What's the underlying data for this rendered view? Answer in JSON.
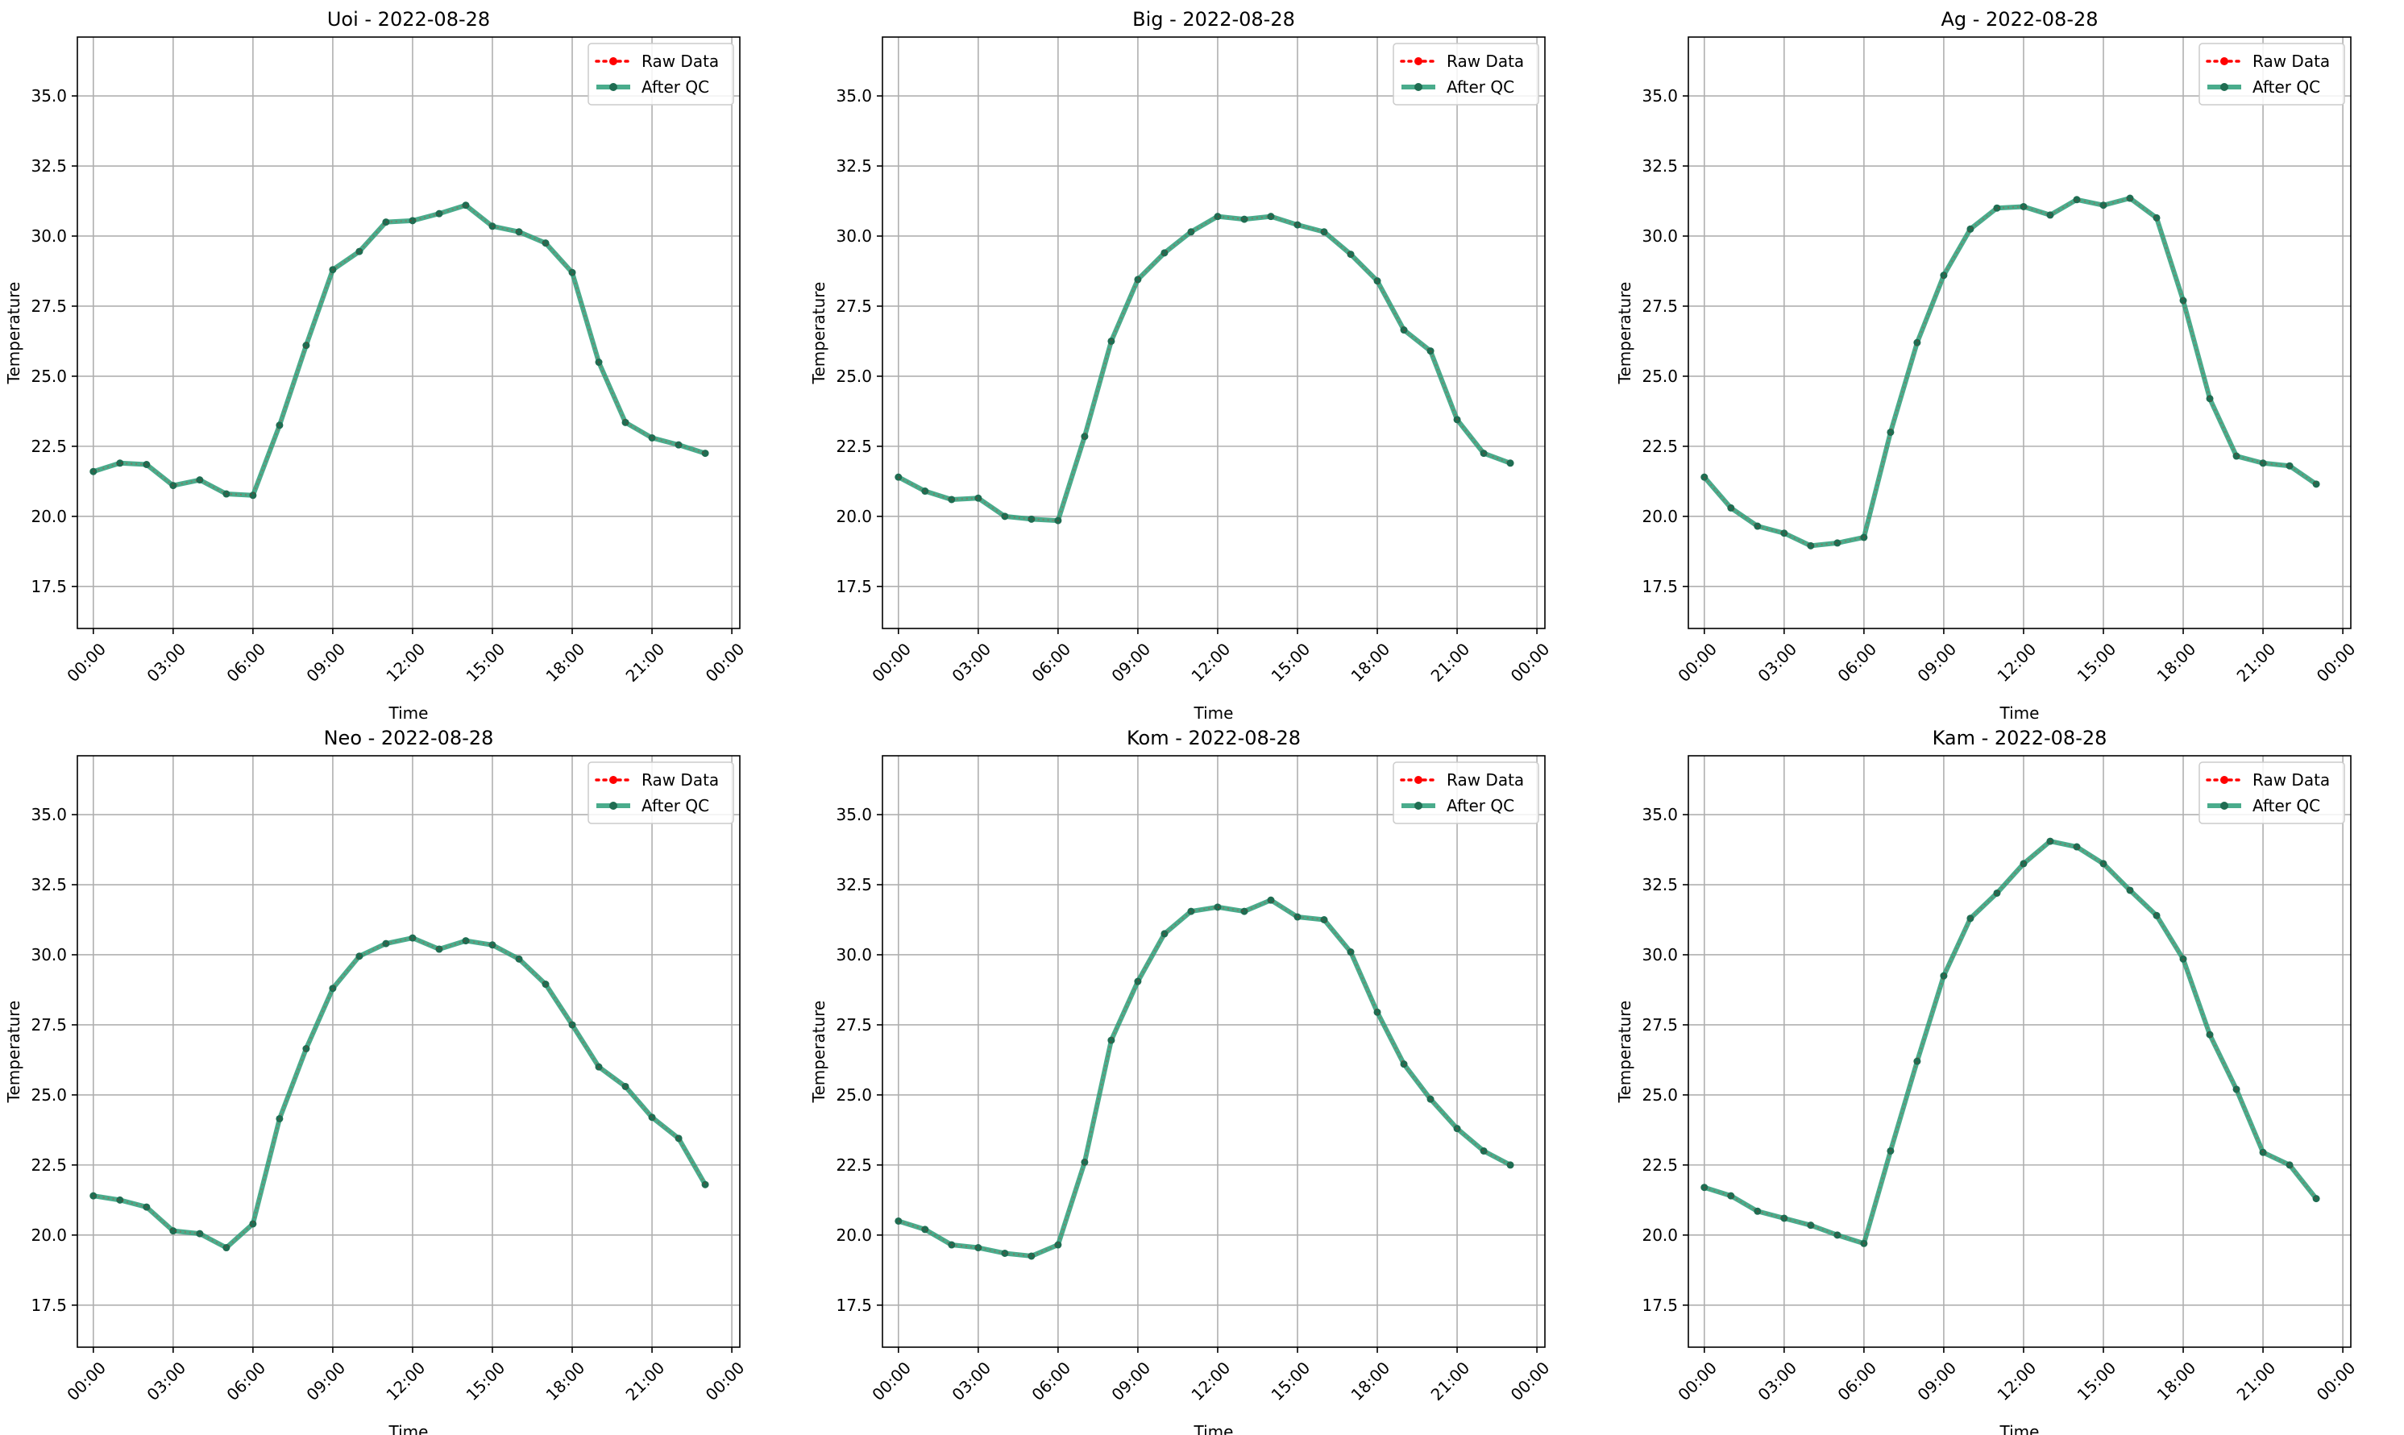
{
  "chart_data": [
    {
      "type": "line",
      "title": "Uoi - 2022-08-28",
      "xlabel": "Time",
      "ylabel": "Temperature",
      "x": [
        0,
        1,
        2,
        3,
        4,
        5,
        6,
        7,
        8,
        9,
        10,
        11,
        12,
        13,
        14,
        15,
        16,
        17,
        18,
        19,
        20,
        21,
        22,
        23
      ],
      "xticks": [
        "00:00",
        "03:00",
        "06:00",
        "09:00",
        "12:00",
        "15:00",
        "18:00",
        "21:00",
        "00:00"
      ],
      "yticks": [
        "17.5",
        "20.0",
        "22.5",
        "25.0",
        "27.5",
        "30.0",
        "32.5",
        "35.0"
      ],
      "ylim": [
        16.0,
        37.1
      ],
      "grid": true,
      "legend_position": "upper right",
      "series": [
        {
          "name": "Raw Data",
          "values": [
            21.6,
            21.9,
            21.85,
            21.1,
            21.3,
            20.8,
            20.75,
            23.25,
            26.1,
            28.8,
            29.45,
            30.5,
            30.55,
            30.8,
            31.1,
            30.35,
            30.15,
            29.75,
            28.7,
            25.5,
            23.35,
            22.8,
            22.55,
            22.25
          ]
        },
        {
          "name": "After QC",
          "values": [
            21.6,
            21.9,
            21.85,
            21.1,
            21.3,
            20.8,
            20.75,
            23.25,
            26.1,
            28.8,
            29.45,
            30.5,
            30.55,
            30.8,
            31.1,
            30.35,
            30.15,
            29.75,
            28.7,
            25.5,
            23.35,
            22.8,
            22.55,
            22.25
          ]
        }
      ]
    },
    {
      "type": "line",
      "title": "Big - 2022-08-28",
      "xlabel": "Time",
      "ylabel": "Temperature",
      "x": [
        0,
        1,
        2,
        3,
        4,
        5,
        6,
        7,
        8,
        9,
        10,
        11,
        12,
        13,
        14,
        15,
        16,
        17,
        18,
        19,
        20,
        21,
        22,
        23
      ],
      "xticks": [
        "00:00",
        "03:00",
        "06:00",
        "09:00",
        "12:00",
        "15:00",
        "18:00",
        "21:00",
        "00:00"
      ],
      "yticks": [
        "17.5",
        "20.0",
        "22.5",
        "25.0",
        "27.5",
        "30.0",
        "32.5",
        "35.0"
      ],
      "ylim": [
        16.0,
        37.1
      ],
      "grid": true,
      "legend_position": "upper right",
      "series": [
        {
          "name": "Raw Data",
          "values": [
            21.4,
            20.9,
            20.6,
            20.65,
            20.0,
            19.9,
            19.85,
            22.85,
            26.25,
            28.45,
            29.4,
            30.15,
            30.7,
            30.6,
            30.7,
            30.4,
            30.15,
            29.35,
            28.4,
            26.65,
            25.9,
            23.45,
            22.25,
            21.9
          ]
        },
        {
          "name": "After QC",
          "values": [
            21.4,
            20.9,
            20.6,
            20.65,
            20.0,
            19.9,
            19.85,
            22.85,
            26.25,
            28.45,
            29.4,
            30.15,
            30.7,
            30.6,
            30.7,
            30.4,
            30.15,
            29.35,
            28.4,
            26.65,
            25.9,
            23.45,
            22.25,
            21.9
          ]
        }
      ]
    },
    {
      "type": "line",
      "title": "Ag - 2022-08-28",
      "xlabel": "Time",
      "ylabel": "Temperature",
      "x": [
        0,
        1,
        2,
        3,
        4,
        5,
        6,
        7,
        8,
        9,
        10,
        11,
        12,
        13,
        14,
        15,
        16,
        17,
        18,
        19,
        20,
        21,
        22,
        23
      ],
      "xticks": [
        "00:00",
        "03:00",
        "06:00",
        "09:00",
        "12:00",
        "15:00",
        "18:00",
        "21:00",
        "00:00"
      ],
      "yticks": [
        "17.5",
        "20.0",
        "22.5",
        "25.0",
        "27.5",
        "30.0",
        "32.5",
        "35.0"
      ],
      "ylim": [
        16.0,
        37.1
      ],
      "grid": true,
      "legend_position": "upper right",
      "series": [
        {
          "name": "Raw Data",
          "values": [
            21.4,
            20.3,
            19.65,
            19.4,
            18.95,
            19.05,
            19.25,
            23.0,
            26.2,
            28.6,
            30.25,
            31.0,
            31.05,
            30.75,
            31.3,
            31.1,
            31.35,
            30.65,
            27.7,
            24.2,
            22.15,
            21.9,
            21.8,
            21.15
          ]
        },
        {
          "name": "After QC",
          "values": [
            21.4,
            20.3,
            19.65,
            19.4,
            18.95,
            19.05,
            19.25,
            23.0,
            26.2,
            28.6,
            30.25,
            31.0,
            31.05,
            30.75,
            31.3,
            31.1,
            31.35,
            30.65,
            27.7,
            24.2,
            22.15,
            21.9,
            21.8,
            21.15
          ]
        }
      ]
    },
    {
      "type": "line",
      "title": "Neo - 2022-08-28",
      "xlabel": "Time",
      "ylabel": "Temperature",
      "x": [
        0,
        1,
        2,
        3,
        4,
        5,
        6,
        7,
        8,
        9,
        10,
        11,
        12,
        13,
        14,
        15,
        16,
        17,
        18,
        19,
        20,
        21,
        22,
        23
      ],
      "xticks": [
        "00:00",
        "03:00",
        "06:00",
        "09:00",
        "12:00",
        "15:00",
        "18:00",
        "21:00",
        "00:00"
      ],
      "yticks": [
        "17.5",
        "20.0",
        "22.5",
        "25.0",
        "27.5",
        "30.0",
        "32.5",
        "35.0"
      ],
      "ylim": [
        16.0,
        37.1
      ],
      "grid": true,
      "legend_position": "upper right",
      "series": [
        {
          "name": "Raw Data",
          "values": [
            21.4,
            21.25,
            21.0,
            20.15,
            20.05,
            19.55,
            20.4,
            24.15,
            26.65,
            28.8,
            29.95,
            30.4,
            30.6,
            30.2,
            30.5,
            30.35,
            29.85,
            28.95,
            27.5,
            26.0,
            25.3,
            24.2,
            23.45,
            21.8
          ]
        },
        {
          "name": "After QC",
          "values": [
            21.4,
            21.25,
            21.0,
            20.15,
            20.05,
            19.55,
            20.4,
            24.15,
            26.65,
            28.8,
            29.95,
            30.4,
            30.6,
            30.2,
            30.5,
            30.35,
            29.85,
            28.95,
            27.5,
            26.0,
            25.3,
            24.2,
            23.45,
            21.8
          ]
        }
      ]
    },
    {
      "type": "line",
      "title": "Kom - 2022-08-28",
      "xlabel": "Time",
      "ylabel": "Temperature",
      "x": [
        0,
        1,
        2,
        3,
        4,
        5,
        6,
        7,
        8,
        9,
        10,
        11,
        12,
        13,
        14,
        15,
        16,
        17,
        18,
        19,
        20,
        21,
        22,
        23
      ],
      "xticks": [
        "00:00",
        "03:00",
        "06:00",
        "09:00",
        "12:00",
        "15:00",
        "18:00",
        "21:00",
        "00:00"
      ],
      "yticks": [
        "17.5",
        "20.0",
        "22.5",
        "25.0",
        "27.5",
        "30.0",
        "32.5",
        "35.0"
      ],
      "ylim": [
        16.0,
        37.1
      ],
      "grid": true,
      "legend_position": "upper right",
      "series": [
        {
          "name": "Raw Data",
          "values": [
            20.5,
            20.2,
            19.65,
            19.55,
            19.35,
            19.25,
            19.65,
            22.6,
            26.95,
            29.05,
            30.75,
            31.55,
            31.7,
            31.55,
            31.95,
            31.35,
            31.25,
            30.1,
            27.95,
            26.1,
            24.85,
            23.8,
            23.0,
            22.5
          ]
        },
        {
          "name": "After QC",
          "values": [
            20.5,
            20.2,
            19.65,
            19.55,
            19.35,
            19.25,
            19.65,
            22.6,
            26.95,
            29.05,
            30.75,
            31.55,
            31.7,
            31.55,
            31.95,
            31.35,
            31.25,
            30.1,
            27.95,
            26.1,
            24.85,
            23.8,
            23.0,
            22.5
          ]
        }
      ]
    },
    {
      "type": "line",
      "title": "Kam - 2022-08-28",
      "xlabel": "Time",
      "ylabel": "Temperature",
      "x": [
        0,
        1,
        2,
        3,
        4,
        5,
        6,
        7,
        8,
        9,
        10,
        11,
        12,
        13,
        14,
        15,
        16,
        17,
        18,
        19,
        20,
        21,
        22,
        23
      ],
      "xticks": [
        "00:00",
        "03:00",
        "06:00",
        "09:00",
        "12:00",
        "15:00",
        "18:00",
        "21:00",
        "00:00"
      ],
      "yticks": [
        "17.5",
        "20.0",
        "22.5",
        "25.0",
        "27.5",
        "30.0",
        "32.5",
        "35.0"
      ],
      "ylim": [
        16.0,
        37.1
      ],
      "grid": true,
      "legend_position": "upper right",
      "series": [
        {
          "name": "Raw Data",
          "values": [
            21.7,
            21.4,
            20.85,
            20.6,
            20.35,
            20.0,
            19.7,
            23.0,
            26.2,
            29.25,
            31.3,
            32.2,
            33.25,
            34.05,
            33.85,
            33.25,
            32.3,
            31.4,
            29.85,
            27.15,
            25.2,
            22.95,
            22.5,
            21.3
          ]
        },
        {
          "name": "After QC",
          "values": [
            21.7,
            21.4,
            20.85,
            20.6,
            20.35,
            20.0,
            19.7,
            23.0,
            26.2,
            29.25,
            31.3,
            32.2,
            33.25,
            34.05,
            33.85,
            33.25,
            32.3,
            31.4,
            29.85,
            27.15,
            25.2,
            22.95,
            22.5,
            21.3
          ]
        }
      ]
    }
  ],
  "colors": {
    "raw": "#ff0000",
    "qc_line": "#2a9d78",
    "qc_marker": "#1f6d52",
    "grid": "#b0b0b0",
    "axis": "#000000"
  }
}
